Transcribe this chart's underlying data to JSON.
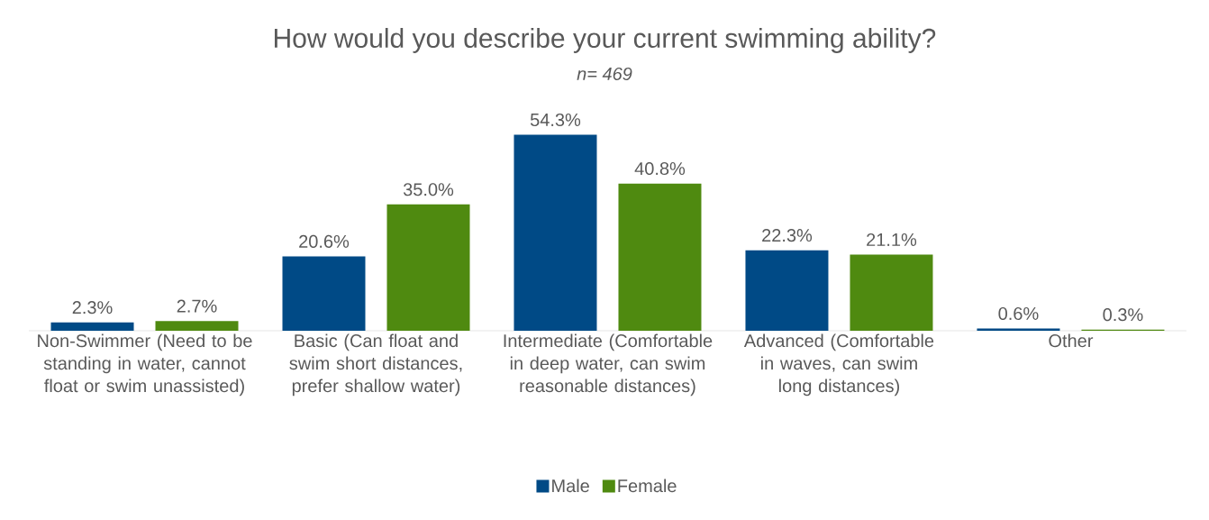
{
  "chart_data": {
    "type": "bar",
    "title": "How would you describe your current swimming ability?",
    "subtitle": "n= 469",
    "categories": [
      "Non-Swimmer (Need to be standing in water, cannot float or swim unassisted)",
      "Basic (Can float and swim short distances, prefer shallow water)",
      "Intermediate (Comfortable in deep water, can swim reasonable distances)",
      "Advanced (Comfortable in waves, can swim long distances)",
      "Other"
    ],
    "series": [
      {
        "name": "Male",
        "color": "#004a86",
        "values": [
          2.3,
          20.6,
          54.3,
          22.3,
          0.6
        ],
        "value_labels": [
          "2.3%",
          "20.6%",
          "54.3%",
          "22.3%",
          "0.6%"
        ]
      },
      {
        "name": "Female",
        "color": "#4f8a10",
        "values": [
          2.7,
          35.0,
          40.8,
          21.1,
          0.3
        ],
        "value_labels": [
          "2.7%",
          "35.0%",
          "40.8%",
          "21.1%",
          "0.3%"
        ]
      }
    ],
    "legend": "bottom"
  }
}
